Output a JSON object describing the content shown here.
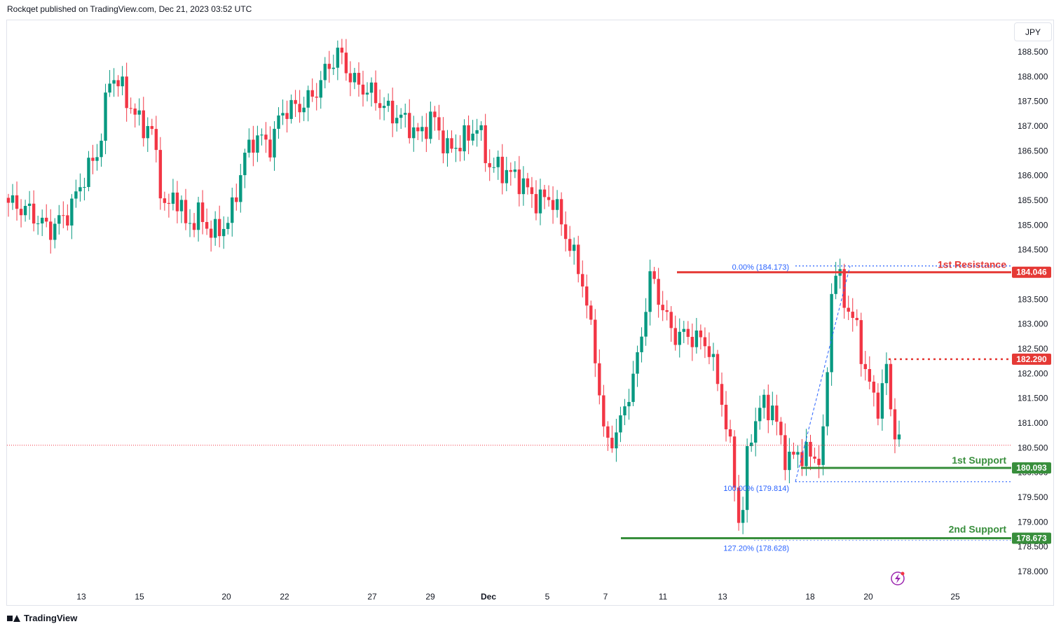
{
  "header": {
    "text": "Rockqet published on TradingView.com, Dec 21, 2023 03:52 UTC"
  },
  "currency": "JPY",
  "footer": {
    "brand": "TradingView"
  },
  "colors": {
    "up": "#089981",
    "down": "#f23645",
    "resistance": "#e53935",
    "support": "#388e3c",
    "fib": "#2962ff"
  },
  "chart_data": {
    "type": "candlestick",
    "y_ticks": [
      "188.500",
      "188.000",
      "187.500",
      "187.000",
      "186.500",
      "186.000",
      "185.500",
      "185.000",
      "184.500",
      "184.000",
      "183.500",
      "183.000",
      "182.500",
      "182.000",
      "181.500",
      "181.000",
      "180.500",
      "180.000",
      "179.500",
      "179.000",
      "178.500",
      "178.000"
    ],
    "ylim": [
      177.85,
      188.95
    ],
    "x_ticks": [
      "13",
      "15",
      "20",
      "22",
      "27",
      "29",
      "Dec",
      "5",
      "7",
      "11",
      "13",
      "18",
      "20",
      "25"
    ],
    "current_price": 180.55,
    "levels": [
      {
        "name": "1st Resistance",
        "value": 184.046,
        "label": "184.046",
        "color": "#e53935"
      },
      {
        "name": "1st Support",
        "value": 180.093,
        "label": "180.093",
        "color": "#388e3c"
      },
      {
        "name": "2nd Support",
        "value": 178.673,
        "label": "178.673",
        "color": "#388e3c"
      }
    ],
    "marker": {
      "value": 182.29,
      "label": "182.290",
      "color": "#e53935"
    },
    "fib_labels": [
      {
        "text": "0.00% (184.173)",
        "value": 184.173
      },
      {
        "text": "100.00% (179.814)",
        "value": 179.814
      },
      {
        "text": "127.20% (178.628)",
        "value": 178.628
      }
    ],
    "waypoints": [
      [
        0,
        185.45
      ],
      [
        14,
        185.3
      ],
      [
        30,
        184.9
      ],
      [
        44,
        185.25
      ],
      [
        55,
        185.95
      ],
      [
        66,
        186.5
      ],
      [
        75,
        188.1
      ],
      [
        82,
        187.8
      ],
      [
        95,
        187.1
      ],
      [
        105,
        186.9
      ],
      [
        115,
        185.2
      ],
      [
        122,
        185.7
      ],
      [
        130,
        185.0
      ],
      [
        140,
        185.2
      ],
      [
        150,
        184.8
      ],
      [
        162,
        185.1
      ],
      [
        173,
        186.4
      ],
      [
        181,
        186.8
      ],
      [
        192,
        186.6
      ],
      [
        200,
        187.3
      ],
      [
        213,
        187.4
      ],
      [
        223,
        187.6
      ],
      [
        233,
        188.15
      ],
      [
        242,
        188.5
      ],
      [
        252,
        187.9
      ],
      [
        264,
        187.7
      ],
      [
        278,
        187.3
      ],
      [
        291,
        187.1
      ],
      [
        300,
        186.8
      ],
      [
        311,
        187.2
      ],
      [
        321,
        186.5
      ],
      [
        333,
        186.7
      ],
      [
        343,
        187.0
      ],
      [
        352,
        186.2
      ],
      [
        363,
        186.1
      ],
      [
        375,
        185.9
      ],
      [
        385,
        185.5
      ],
      [
        398,
        185.55
      ],
      [
        408,
        184.8
      ],
      [
        420,
        183.9
      ],
      [
        430,
        182.3
      ],
      [
        437,
        180.5
      ],
      [
        447,
        180.9
      ],
      [
        460,
        182.2
      ],
      [
        470,
        184.0
      ],
      [
        478,
        183.4
      ],
      [
        486,
        182.8
      ],
      [
        500,
        182.75
      ],
      [
        512,
        182.6
      ],
      [
        522,
        181.5
      ],
      [
        530,
        180.2
      ],
      [
        536,
        178.7
      ],
      [
        542,
        180.7
      ],
      [
        552,
        181.4
      ],
      [
        559,
        181.3
      ],
      [
        570,
        180.2
      ],
      [
        578,
        180.4
      ],
      [
        586,
        180.35
      ],
      [
        593,
        180.3
      ],
      [
        597,
        180.7
      ],
      [
        602,
        183.6
      ],
      [
        606,
        184.1
      ],
      [
        613,
        183.4
      ],
      [
        620,
        183.0
      ],
      [
        626,
        182.2
      ],
      [
        633,
        181.5
      ],
      [
        638,
        181.3
      ],
      [
        642,
        182.3
      ],
      [
        646,
        181.2
      ],
      [
        652,
        180.6
      ]
    ]
  }
}
